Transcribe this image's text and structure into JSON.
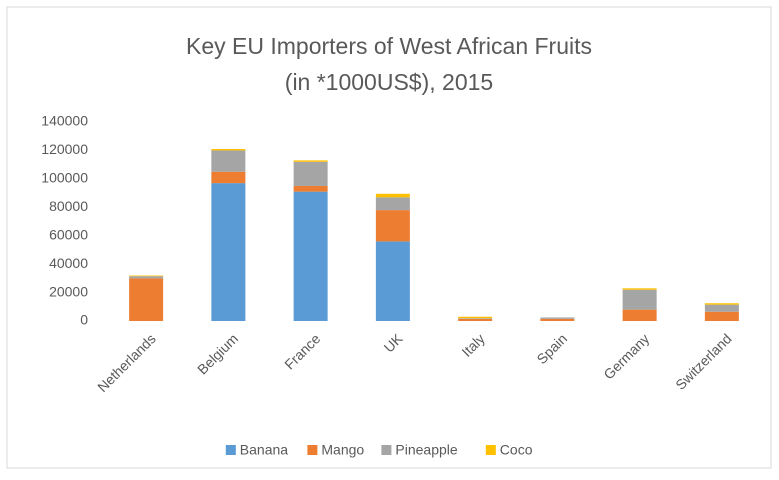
{
  "chart_data": {
    "type": "stacked-bar",
    "title": [
      "Key EU Importers of West African Fruits",
      "(in *1000US$), 2015"
    ],
    "categories": [
      "Netherlands",
      "Belgium",
      "France",
      "UK",
      "Italy",
      "Spain",
      "Germany",
      "Switzerland"
    ],
    "series": [
      {
        "name": "Banana",
        "color": "#5b9bd5",
        "values": [
          0,
          97000,
          91000,
          56000,
          0,
          0,
          0,
          0
        ]
      },
      {
        "name": "Mango",
        "color": "#ed7d31",
        "values": [
          30000,
          8000,
          4000,
          22000,
          1500,
          1500,
          8000,
          6500
        ]
      },
      {
        "name": "Pineapple",
        "color": "#a5a5a5",
        "values": [
          1500,
          15000,
          17000,
          9000,
          500,
          1000,
          14000,
          5000
        ]
      },
      {
        "name": "Coco",
        "color": "#ffc000",
        "values": [
          500,
          1000,
          1000,
          2500,
          1000,
          0,
          1000,
          1000
        ]
      }
    ],
    "ylim": [
      0,
      140000
    ],
    "yticks": [
      0,
      20000,
      40000,
      60000,
      80000,
      100000,
      120000,
      140000
    ],
    "grid": false,
    "legend": "bottom"
  }
}
